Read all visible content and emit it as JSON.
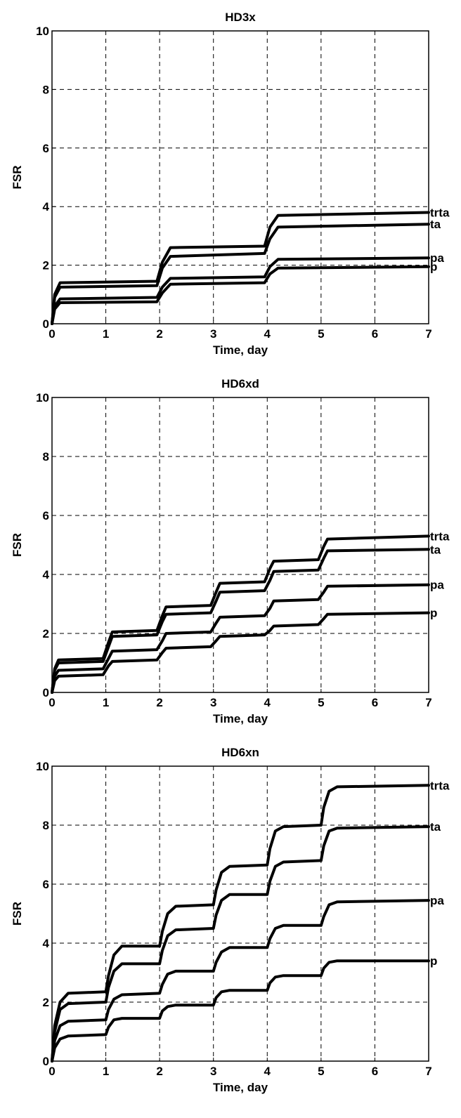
{
  "chart_data": [
    {
      "type": "line",
      "title": "HD3x",
      "xlabel": "Time, day",
      "ylabel": "FSR",
      "xlim": [
        0,
        7
      ],
      "ylim": [
        0,
        10
      ],
      "xticks": [
        "0",
        "1",
        "2",
        "3",
        "4",
        "5",
        "6",
        "7"
      ],
      "yticks": [
        "0",
        "2",
        "4",
        "6",
        "8",
        "10"
      ],
      "grid": true,
      "series": [
        {
          "name": "trta",
          "x": [
            0,
            0.05,
            0.15,
            1.95,
            2.05,
            2.2,
            3.95,
            4.05,
            4.2,
            7
          ],
          "y": [
            0,
            1.0,
            1.4,
            1.45,
            2.1,
            2.6,
            2.65,
            3.3,
            3.7,
            3.8
          ]
        },
        {
          "name": "ta",
          "x": [
            0,
            0.05,
            0.15,
            1.95,
            2.05,
            2.2,
            3.95,
            4.05,
            4.2,
            7
          ],
          "y": [
            0,
            0.9,
            1.25,
            1.3,
            1.9,
            2.3,
            2.4,
            2.9,
            3.3,
            3.4
          ]
        },
        {
          "name": "pa",
          "x": [
            0,
            0.05,
            0.15,
            1.95,
            2.05,
            2.2,
            3.95,
            4.05,
            4.2,
            7
          ],
          "y": [
            0,
            0.6,
            0.85,
            0.9,
            1.25,
            1.55,
            1.6,
            1.95,
            2.2,
            2.25
          ]
        },
        {
          "name": "p",
          "x": [
            0,
            0.05,
            0.15,
            1.95,
            2.05,
            2.2,
            3.95,
            4.05,
            4.2,
            7
          ],
          "y": [
            0,
            0.5,
            0.72,
            0.75,
            1.05,
            1.35,
            1.4,
            1.7,
            1.9,
            1.95
          ]
        }
      ]
    },
    {
      "type": "line",
      "title": "HD6xd",
      "xlabel": "Time, day",
      "ylabel": "FSR",
      "xlim": [
        0,
        7
      ],
      "ylim": [
        0,
        10
      ],
      "xticks": [
        "0",
        "1",
        "2",
        "3",
        "4",
        "5",
        "6",
        "7"
      ],
      "yticks": [
        "0",
        "2",
        "4",
        "6",
        "8",
        "10"
      ],
      "grid": true,
      "series": [
        {
          "name": "trta",
          "x": [
            0,
            0.05,
            0.12,
            0.95,
            1.05,
            1.12,
            1.95,
            2.05,
            2.12,
            2.95,
            3.05,
            3.12,
            3.95,
            4.05,
            4.12,
            4.95,
            5.05,
            5.12,
            7
          ],
          "y": [
            0,
            0.8,
            1.1,
            1.15,
            1.7,
            2.05,
            2.1,
            2.6,
            2.9,
            2.95,
            3.4,
            3.7,
            3.75,
            4.2,
            4.45,
            4.5,
            4.95,
            5.2,
            5.3
          ]
        },
        {
          "name": "ta",
          "x": [
            0,
            0.05,
            0.12,
            0.95,
            1.05,
            1.12,
            1.95,
            2.05,
            2.12,
            2.95,
            3.05,
            3.12,
            3.95,
            4.05,
            4.12,
            4.95,
            5.05,
            5.12,
            7
          ],
          "y": [
            0,
            0.75,
            1.0,
            1.05,
            1.55,
            1.9,
            1.95,
            2.4,
            2.65,
            2.7,
            3.1,
            3.4,
            3.45,
            3.8,
            4.1,
            4.15,
            4.55,
            4.8,
            4.85
          ]
        },
        {
          "name": "pa",
          "x": [
            0,
            0.05,
            0.12,
            0.95,
            1.05,
            1.12,
            1.95,
            2.05,
            2.12,
            2.95,
            3.05,
            3.12,
            3.95,
            4.05,
            4.12,
            4.95,
            5.05,
            5.12,
            7
          ],
          "y": [
            0,
            0.55,
            0.75,
            0.8,
            1.15,
            1.4,
            1.45,
            1.75,
            2.0,
            2.05,
            2.35,
            2.55,
            2.6,
            2.85,
            3.1,
            3.15,
            3.4,
            3.6,
            3.65
          ]
        },
        {
          "name": "p",
          "x": [
            0,
            0.05,
            0.12,
            0.95,
            1.05,
            1.12,
            1.95,
            2.05,
            2.12,
            2.95,
            3.05,
            3.12,
            3.95,
            4.05,
            4.12,
            4.95,
            5.05,
            5.12,
            7
          ],
          "y": [
            0,
            0.4,
            0.55,
            0.6,
            0.9,
            1.05,
            1.1,
            1.35,
            1.5,
            1.55,
            1.75,
            1.9,
            1.95,
            2.1,
            2.25,
            2.3,
            2.5,
            2.65,
            2.7
          ]
        }
      ]
    },
    {
      "type": "line",
      "title": "HD6xn",
      "xlabel": "Time, day",
      "ylabel": "FSR",
      "xlim": [
        0,
        7
      ],
      "ylim": [
        0,
        10
      ],
      "xticks": [
        "0",
        "1",
        "2",
        "3",
        "4",
        "5",
        "6",
        "7"
      ],
      "yticks": [
        "0",
        "2",
        "4",
        "6",
        "8",
        "10"
      ],
      "grid": true,
      "series": [
        {
          "name": "trta",
          "x": [
            0,
            0.05,
            0.15,
            0.3,
            1.0,
            1.05,
            1.15,
            1.3,
            2.0,
            2.05,
            2.15,
            2.3,
            3.0,
            3.05,
            3.15,
            3.3,
            4.0,
            4.05,
            4.15,
            4.3,
            5.0,
            5.05,
            5.15,
            5.3,
            7
          ],
          "y": [
            0,
            1.2,
            2.0,
            2.3,
            2.35,
            2.9,
            3.6,
            3.9,
            3.9,
            4.4,
            5.0,
            5.25,
            5.3,
            5.8,
            6.4,
            6.6,
            6.65,
            7.2,
            7.8,
            7.95,
            8.0,
            8.6,
            9.15,
            9.3,
            9.35
          ]
        },
        {
          "name": "ta",
          "x": [
            0,
            0.05,
            0.15,
            0.3,
            1.0,
            1.05,
            1.15,
            1.3,
            2.0,
            2.05,
            2.15,
            2.3,
            3.0,
            3.05,
            3.15,
            3.3,
            4.0,
            4.05,
            4.15,
            4.3,
            5.0,
            5.05,
            5.15,
            5.3,
            7
          ],
          "y": [
            0,
            1.0,
            1.75,
            1.95,
            2.0,
            2.5,
            3.05,
            3.3,
            3.3,
            3.75,
            4.25,
            4.45,
            4.5,
            4.95,
            5.45,
            5.65,
            5.65,
            6.1,
            6.6,
            6.75,
            6.8,
            7.3,
            7.8,
            7.9,
            7.95
          ]
        },
        {
          "name": "pa",
          "x": [
            0,
            0.05,
            0.15,
            0.3,
            1.0,
            1.05,
            1.15,
            1.3,
            2.0,
            2.05,
            2.15,
            2.3,
            3.0,
            3.05,
            3.15,
            3.3,
            4.0,
            4.05,
            4.15,
            4.3,
            5.0,
            5.05,
            5.15,
            5.3,
            7
          ],
          "y": [
            0,
            0.7,
            1.2,
            1.35,
            1.4,
            1.75,
            2.1,
            2.25,
            2.3,
            2.6,
            2.95,
            3.05,
            3.05,
            3.35,
            3.7,
            3.85,
            3.85,
            4.15,
            4.5,
            4.6,
            4.6,
            4.9,
            5.3,
            5.4,
            5.45
          ]
        },
        {
          "name": "p",
          "x": [
            0,
            0.05,
            0.15,
            0.3,
            1.0,
            1.05,
            1.15,
            1.3,
            2.0,
            2.05,
            2.15,
            2.3,
            3.0,
            3.05,
            3.15,
            3.3,
            4.0,
            4.05,
            4.15,
            4.3,
            5.0,
            5.05,
            5.15,
            5.3,
            7
          ],
          "y": [
            0,
            0.45,
            0.75,
            0.85,
            0.9,
            1.15,
            1.4,
            1.45,
            1.45,
            1.7,
            1.85,
            1.9,
            1.9,
            2.15,
            2.35,
            2.4,
            2.4,
            2.65,
            2.85,
            2.9,
            2.9,
            3.15,
            3.35,
            3.4,
            3.4
          ]
        }
      ]
    }
  ]
}
